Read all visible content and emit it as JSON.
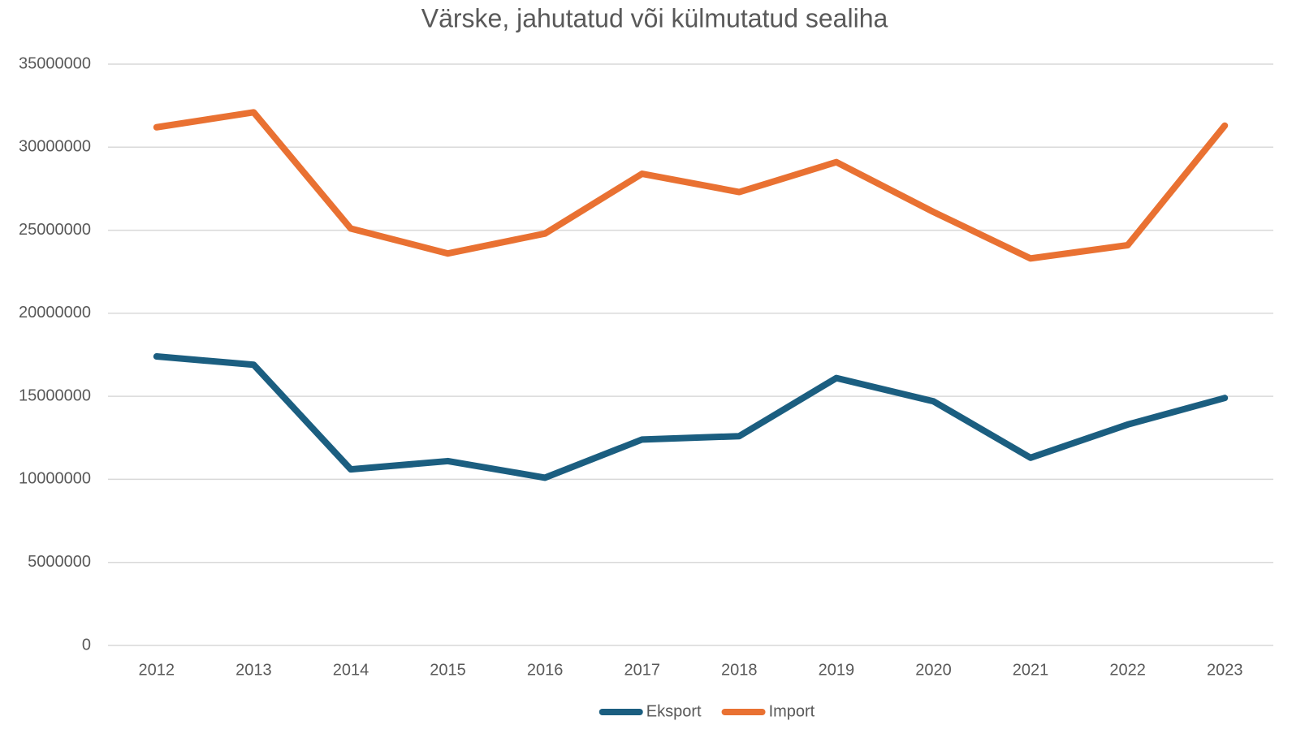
{
  "chart_data": {
    "type": "line",
    "title": "Värske, jahutatud või külmutatud sealiha",
    "categories": [
      "2012",
      "2013",
      "2014",
      "2015",
      "2016",
      "2017",
      "2018",
      "2019",
      "2020",
      "2021",
      "2022",
      "2023"
    ],
    "series": [
      {
        "name": "Eksport",
        "color": "#1b5e80",
        "values": [
          17400000,
          16900000,
          10600000,
          11100000,
          10100000,
          12400000,
          12600000,
          16100000,
          14700000,
          11300000,
          13300000,
          14900000
        ]
      },
      {
        "name": "Import",
        "color": "#e97132",
        "values": [
          31200000,
          32100000,
          25100000,
          23600000,
          24800000,
          28400000,
          27300000,
          29100000,
          26100000,
          23300000,
          24100000,
          31300000
        ]
      }
    ],
    "ylim": [
      0,
      35000000
    ],
    "yticks": [
      0,
      5000000,
      10000000,
      15000000,
      20000000,
      25000000,
      30000000,
      35000000
    ],
    "grid": true,
    "legend": "bottom"
  }
}
